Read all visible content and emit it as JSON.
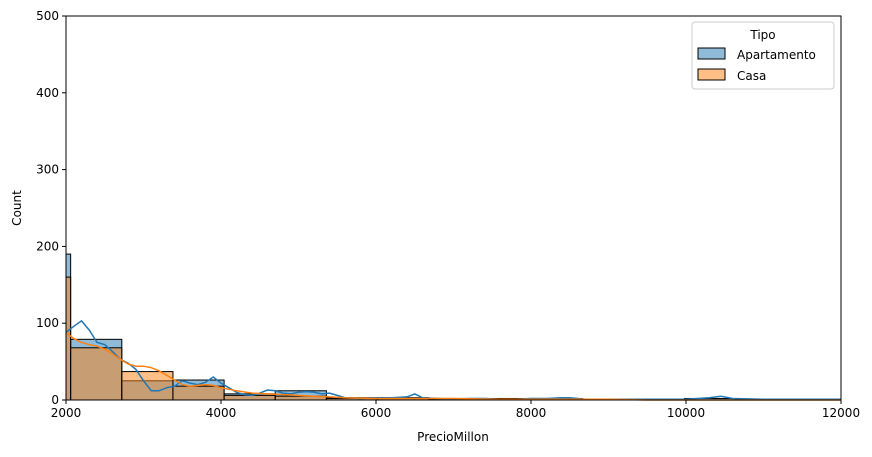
{
  "chart_data": {
    "type": "bar",
    "subtype": "histogram-with-kde",
    "xlabel": "PrecioMillon",
    "ylabel": "Count",
    "xlim": [
      2000,
      12000
    ],
    "ylim": [
      0,
      500
    ],
    "xticks": [
      "2000",
      "4000",
      "6000",
      "8000",
      "10000",
      "12000"
    ],
    "yticks": [
      "0",
      "100",
      "200",
      "300",
      "400",
      "500"
    ],
    "grid": false,
    "legend": {
      "title": "Tipo",
      "placement": "top-right",
      "entries": [
        {
          "label": "Apartamento",
          "color": "#1f77b4"
        },
        {
          "label": "Casa",
          "color": "#ff7f0e"
        }
      ]
    },
    "bins": [
      [
        2000,
        2060
      ],
      [
        2060,
        2720
      ],
      [
        2720,
        3380
      ],
      [
        3380,
        4040
      ],
      [
        4040,
        4700
      ],
      [
        4700,
        5360
      ],
      [
        5360,
        6020
      ],
      [
        6020,
        6680
      ],
      [
        6680,
        7340
      ],
      [
        7340,
        8000
      ],
      [
        8000,
        8660
      ],
      [
        8660,
        9320
      ],
      [
        9320,
        9980
      ],
      [
        9980,
        10640
      ],
      [
        10640,
        11300
      ],
      [
        11300,
        12000
      ]
    ],
    "series": [
      {
        "name": "Apartamento",
        "color": "#1f77b4",
        "values": [
          190,
          79,
          25,
          26,
          8,
          12,
          3,
          3,
          2,
          2,
          2,
          1,
          1,
          2,
          1,
          1
        ],
        "kde": [
          [
            2000,
            88
          ],
          [
            2100,
            96
          ],
          [
            2200,
            103
          ],
          [
            2300,
            91
          ],
          [
            2400,
            75
          ],
          [
            2500,
            72
          ],
          [
            2600,
            63
          ],
          [
            2700,
            53
          ],
          [
            2800,
            48
          ],
          [
            2900,
            40
          ],
          [
            3000,
            25
          ],
          [
            3100,
            12
          ],
          [
            3200,
            12
          ],
          [
            3300,
            16
          ],
          [
            3400,
            18
          ],
          [
            3500,
            25
          ],
          [
            3600,
            22
          ],
          [
            3700,
            20
          ],
          [
            3800,
            23
          ],
          [
            3900,
            30
          ],
          [
            4000,
            22
          ],
          [
            4100,
            16
          ],
          [
            4200,
            10
          ],
          [
            4300,
            7
          ],
          [
            4400,
            6
          ],
          [
            4500,
            9
          ],
          [
            4600,
            13
          ],
          [
            4700,
            12
          ],
          [
            4800,
            9
          ],
          [
            4900,
            8
          ],
          [
            5000,
            10
          ],
          [
            5100,
            11
          ],
          [
            5200,
            10
          ],
          [
            5300,
            8
          ],
          [
            5400,
            9
          ],
          [
            5500,
            6
          ],
          [
            5600,
            3
          ],
          [
            5800,
            2
          ],
          [
            6000,
            3
          ],
          [
            6200,
            3
          ],
          [
            6400,
            4
          ],
          [
            6500,
            8
          ],
          [
            6600,
            3
          ],
          [
            6800,
            2
          ],
          [
            7000,
            1
          ],
          [
            7200,
            2
          ],
          [
            7400,
            2
          ],
          [
            7600,
            1
          ],
          [
            7800,
            1
          ],
          [
            8000,
            2
          ],
          [
            8200,
            2
          ],
          [
            8400,
            3
          ],
          [
            8500,
            3
          ],
          [
            8700,
            1
          ],
          [
            9000,
            1
          ],
          [
            9500,
            1
          ],
          [
            10000,
            1
          ],
          [
            10300,
            3
          ],
          [
            10450,
            5
          ],
          [
            10600,
            2
          ],
          [
            11000,
            1
          ],
          [
            11500,
            1
          ],
          [
            12000,
            1
          ]
        ]
      },
      {
        "name": "Casa",
        "color": "#ff7f0e",
        "values": [
          160,
          68,
          37,
          18,
          6,
          5,
          2,
          2,
          1,
          1,
          1,
          1,
          1,
          0,
          0,
          0
        ],
        "kde": [
          [
            2000,
            88
          ],
          [
            2100,
            80
          ],
          [
            2200,
            75
          ],
          [
            2300,
            72
          ],
          [
            2400,
            70
          ],
          [
            2500,
            66
          ],
          [
            2600,
            60
          ],
          [
            2700,
            53
          ],
          [
            2800,
            47
          ],
          [
            2900,
            44
          ],
          [
            3000,
            44
          ],
          [
            3100,
            42
          ],
          [
            3200,
            38
          ],
          [
            3300,
            32
          ],
          [
            3400,
            26
          ],
          [
            3500,
            20
          ],
          [
            3600,
            18
          ],
          [
            3700,
            19
          ],
          [
            3800,
            20
          ],
          [
            3900,
            19
          ],
          [
            4000,
            16
          ],
          [
            4200,
            12
          ],
          [
            4400,
            9
          ],
          [
            4600,
            8
          ],
          [
            4800,
            7
          ],
          [
            5000,
            6
          ],
          [
            5200,
            5
          ],
          [
            5400,
            4
          ],
          [
            5600,
            3
          ],
          [
            6000,
            2
          ],
          [
            6500,
            2
          ],
          [
            7000,
            2
          ],
          [
            7500,
            1
          ],
          [
            8000,
            1
          ],
          [
            8500,
            1
          ],
          [
            9000,
            1
          ],
          [
            9500,
            0
          ],
          [
            10000,
            0
          ],
          [
            10500,
            0
          ],
          [
            11000,
            0
          ],
          [
            12000,
            0
          ]
        ]
      }
    ]
  }
}
